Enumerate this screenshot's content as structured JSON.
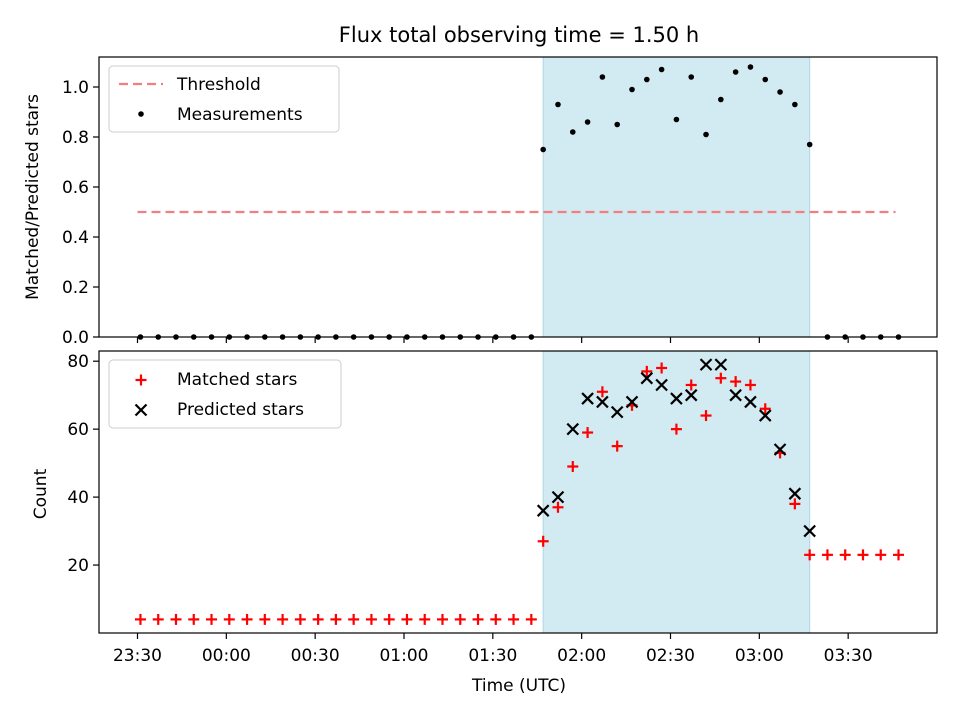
{
  "colors": {
    "threshold": "#f08080",
    "measurement": "#000000",
    "matched": "#ff0000",
    "predicted": "#000000",
    "span": "#add8e6"
  },
  "chart_data": [
    {
      "type": "scatter",
      "title": "Flux total observing time = 1.50 h",
      "xlabel": "",
      "ylabel": "Matched/Predicted stars",
      "ylim": [
        0,
        1.12
      ],
      "yticks": [
        "0.0",
        "0.2",
        "0.4",
        "0.6",
        "0.8",
        "1.0"
      ],
      "ytick_values": [
        0,
        0.2,
        0.4,
        0.6,
        0.8,
        1.0
      ],
      "xlim": [
        "23:17",
        "04:00"
      ],
      "legend_position": "top-left",
      "shaded_span": [
        "01:47",
        "03:17"
      ],
      "threshold": {
        "name": "Threshold",
        "value": 0.5,
        "x_start": "23:30",
        "x_end": "03:46"
      },
      "measurements": {
        "name": "Measurements",
        "x": [
          "23:31",
          "23:37",
          "23:43",
          "23:49",
          "23:55",
          "00:01",
          "00:07",
          "00:13",
          "00:19",
          "00:25",
          "00:31",
          "00:37",
          "00:43",
          "00:49",
          "00:55",
          "01:01",
          "01:07",
          "01:13",
          "01:19",
          "01:25",
          "01:31",
          "01:37",
          "01:43",
          "01:47",
          "01:52",
          "01:57",
          "02:02",
          "02:07",
          "02:12",
          "02:17",
          "02:22",
          "02:27",
          "02:32",
          "02:37",
          "02:42",
          "02:47",
          "02:52",
          "02:57",
          "03:02",
          "03:07",
          "03:12",
          "03:17",
          "03:23",
          "03:29",
          "03:35",
          "03:41",
          "03:47"
        ],
        "y": [
          0,
          0,
          0,
          0,
          0,
          0,
          0,
          0,
          0,
          0,
          0,
          0,
          0,
          0,
          0,
          0,
          0,
          0,
          0,
          0,
          0,
          0,
          0,
          0.75,
          0.93,
          0.82,
          0.86,
          1.04,
          0.85,
          0.99,
          1.03,
          1.07,
          0.87,
          1.04,
          0.81,
          0.95,
          1.06,
          1.08,
          1.03,
          0.98,
          0.93,
          0.77,
          0,
          0,
          0,
          0,
          0
        ]
      }
    },
    {
      "type": "scatter",
      "title": "",
      "xlabel": "Time (UTC)",
      "ylabel": "Count",
      "ylim": [
        0,
        83
      ],
      "yticks": [
        "20",
        "40",
        "60",
        "80"
      ],
      "ytick_values": [
        20,
        40,
        60,
        80
      ],
      "xlim": [
        "23:17",
        "04:00"
      ],
      "xticks": [
        "23:30",
        "00:00",
        "00:30",
        "01:00",
        "01:30",
        "02:00",
        "02:30",
        "03:00",
        "03:30"
      ],
      "legend_position": "top-left",
      "shaded_span": [
        "01:47",
        "03:17"
      ],
      "series": [
        {
          "name": "Matched stars",
          "x": [
            "23:31",
            "23:37",
            "23:43",
            "23:49",
            "23:55",
            "00:01",
            "00:07",
            "00:13",
            "00:19",
            "00:25",
            "00:31",
            "00:37",
            "00:43",
            "00:49",
            "00:55",
            "01:01",
            "01:07",
            "01:13",
            "01:19",
            "01:25",
            "01:31",
            "01:37",
            "01:43",
            "01:47",
            "01:52",
            "01:57",
            "02:02",
            "02:07",
            "02:12",
            "02:17",
            "02:22",
            "02:27",
            "02:32",
            "02:37",
            "02:42",
            "02:47",
            "02:52",
            "02:57",
            "03:02",
            "03:07",
            "03:12",
            "03:17",
            "03:23",
            "03:29",
            "03:35",
            "03:41",
            "03:47"
          ],
          "y": [
            4,
            4,
            4,
            4,
            4,
            4,
            4,
            4,
            4,
            4,
            4,
            4,
            4,
            4,
            4,
            4,
            4,
            4,
            4,
            4,
            4,
            4,
            4,
            27,
            37,
            49,
            59,
            71,
            55,
            67,
            77,
            78,
            60,
            73,
            64,
            75,
            74,
            73,
            66,
            53,
            38,
            23,
            23,
            23,
            23,
            23,
            23
          ]
        },
        {
          "name": "Predicted stars",
          "x": [
            "01:47",
            "01:52",
            "01:57",
            "02:02",
            "02:07",
            "02:12",
            "02:17",
            "02:22",
            "02:27",
            "02:32",
            "02:37",
            "02:42",
            "02:47",
            "02:52",
            "02:57",
            "03:02",
            "03:07",
            "03:12",
            "03:17"
          ],
          "y": [
            36,
            40,
            60,
            69,
            68,
            65,
            68,
            75,
            73,
            69,
            70,
            79,
            79,
            70,
            68,
            64,
            54,
            41,
            30
          ]
        }
      ]
    }
  ]
}
